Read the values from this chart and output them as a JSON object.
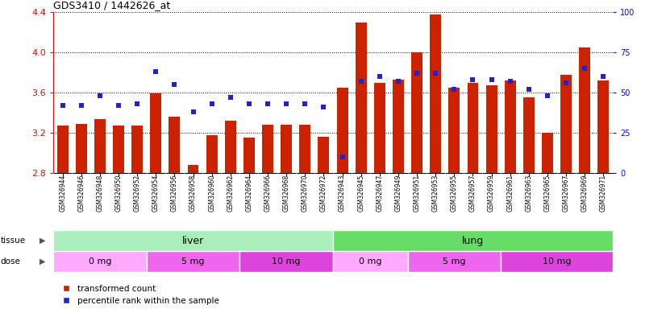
{
  "title": "GDS3410 / 1442626_at",
  "categories": [
    "GSM326944",
    "GSM326946",
    "GSM326948",
    "GSM326950",
    "GSM326952",
    "GSM326954",
    "GSM326956",
    "GSM326958",
    "GSM326960",
    "GSM326962",
    "GSM326964",
    "GSM326966",
    "GSM326968",
    "GSM326970",
    "GSM326972",
    "GSM326943",
    "GSM326945",
    "GSM326947",
    "GSM326949",
    "GSM326951",
    "GSM326953",
    "GSM326955",
    "GSM326957",
    "GSM326959",
    "GSM326961",
    "GSM326963",
    "GSM326965",
    "GSM326967",
    "GSM326969",
    "GSM326971"
  ],
  "bar_values": [
    3.27,
    3.29,
    3.34,
    3.27,
    3.27,
    3.59,
    3.36,
    2.88,
    3.18,
    3.32,
    3.15,
    3.28,
    3.28,
    3.28,
    3.16,
    3.65,
    4.3,
    3.7,
    3.73,
    4.0,
    4.38,
    3.65,
    3.7,
    3.67,
    3.72,
    3.55,
    3.2,
    3.78,
    4.05,
    3.72
  ],
  "percentile_values": [
    42,
    42,
    48,
    42,
    43,
    63,
    55,
    38,
    43,
    47,
    43,
    43,
    43,
    43,
    41,
    10,
    57,
    60,
    57,
    62,
    62,
    52,
    58,
    58,
    57,
    52,
    48,
    56,
    65,
    60
  ],
  "ylim_left": [
    2.8,
    4.4
  ],
  "ylim_right": [
    0,
    100
  ],
  "yticks_left": [
    2.8,
    3.2,
    3.6,
    4.0,
    4.4
  ],
  "yticks_right": [
    0,
    25,
    50,
    75,
    100
  ],
  "bar_color": "#CC2200",
  "marker_color": "#2222CC",
  "tissue_groups": [
    {
      "label": "liver",
      "start": 0,
      "end": 15,
      "color": "#AAEEBB"
    },
    {
      "label": "lung",
      "start": 15,
      "end": 30,
      "color": "#66DD66"
    }
  ],
  "dose_groups": [
    {
      "label": "0 mg",
      "start": 0,
      "end": 5,
      "color": "#FFAAFF"
    },
    {
      "label": "5 mg",
      "start": 5,
      "end": 10,
      "color": "#EE66EE"
    },
    {
      "label": "10 mg",
      "start": 10,
      "end": 15,
      "color": "#DD44DD"
    },
    {
      "label": "0 mg",
      "start": 15,
      "end": 19,
      "color": "#FFAAFF"
    },
    {
      "label": "5 mg",
      "start": 19,
      "end": 24,
      "color": "#EE66EE"
    },
    {
      "label": "10 mg",
      "start": 24,
      "end": 30,
      "color": "#DD44DD"
    }
  ],
  "legend_items": [
    {
      "label": "transformed count",
      "color": "#CC2200"
    },
    {
      "label": "percentile rank within the sample",
      "color": "#2222CC"
    }
  ],
  "fig_bg": "#ffffff",
  "plot_bg": "#ffffff",
  "xtick_bg": "#DDDDDD"
}
